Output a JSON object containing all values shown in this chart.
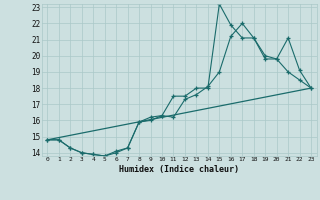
{
  "xlabel": "Humidex (Indice chaleur)",
  "bg_color": "#cce0e0",
  "grid_color": "#aac8c8",
  "line_color": "#1a6b6b",
  "xlim": [
    -0.5,
    23.5
  ],
  "ylim": [
    13.8,
    23.2
  ],
  "xticks": [
    0,
    1,
    2,
    3,
    4,
    5,
    6,
    7,
    8,
    9,
    10,
    11,
    12,
    13,
    14,
    15,
    16,
    17,
    18,
    19,
    20,
    21,
    22,
    23
  ],
  "yticks": [
    14,
    15,
    16,
    17,
    18,
    19,
    20,
    21,
    22,
    23
  ],
  "series1_x": [
    0,
    1,
    2,
    3,
    4,
    5,
    6,
    7,
    8,
    9,
    10,
    11,
    12,
    13,
    14,
    15,
    16,
    17,
    18,
    19,
    20,
    21,
    22,
    23
  ],
  "series1_y": [
    14.8,
    14.8,
    14.3,
    14.0,
    13.9,
    13.8,
    14.0,
    14.3,
    15.9,
    16.2,
    16.3,
    17.5,
    17.5,
    18.0,
    18.0,
    23.2,
    21.9,
    21.1,
    21.1,
    20.0,
    19.8,
    19.0,
    18.5,
    18.0
  ],
  "series2_x": [
    0,
    1,
    2,
    3,
    4,
    5,
    6,
    7,
    8,
    9,
    10,
    11,
    12,
    13,
    14,
    15,
    16,
    17,
    18,
    19,
    20,
    21,
    22,
    23
  ],
  "series2_y": [
    14.8,
    14.8,
    14.3,
    14.0,
    13.9,
    13.8,
    14.1,
    14.3,
    15.9,
    16.0,
    16.3,
    16.2,
    17.3,
    17.6,
    18.1,
    19.0,
    21.2,
    22.0,
    21.1,
    19.8,
    19.8,
    21.1,
    19.1,
    18.0
  ],
  "series3_x": [
    0,
    23
  ],
  "series3_y": [
    14.8,
    18.0
  ]
}
